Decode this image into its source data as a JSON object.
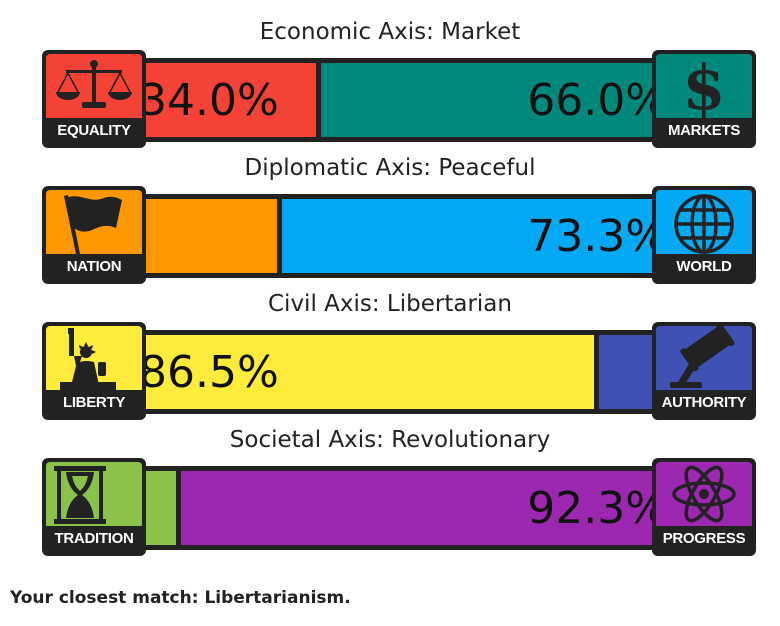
{
  "axes": [
    {
      "title": "Economic Axis: Market",
      "left": {
        "label": "EQUALITY",
        "icon": "scales-icon",
        "value": 34.0,
        "value_text": "34.0%",
        "color": "#f44336"
      },
      "right": {
        "label": "MARKETS",
        "icon": "dollar-icon",
        "value": 66.0,
        "value_text": "66.0%",
        "color": "#00897b"
      }
    },
    {
      "title": "Diplomatic Axis: Peaceful",
      "left": {
        "label": "NATION",
        "icon": "flag-icon",
        "value": 26.7,
        "value_text": "",
        "color": "#ff9800"
      },
      "right": {
        "label": "WORLD",
        "icon": "globe-icon",
        "value": 73.3,
        "value_text": "73.3%",
        "color": "#03a9f4"
      }
    },
    {
      "title": "Civil Axis: Libertarian",
      "left": {
        "label": "LIBERTY",
        "icon": "statue-of-liberty-icon",
        "value": 86.5,
        "value_text": "86.5%",
        "color": "#ffeb3b"
      },
      "right": {
        "label": "AUTHORITY",
        "icon": "gavel-icon",
        "value": 13.5,
        "value_text": "",
        "color": "#3f51b5"
      }
    },
    {
      "title": "Societal Axis: Revolutionary",
      "left": {
        "label": "TRADITION",
        "icon": "hourglass-icon",
        "value": 7.7,
        "value_text": "",
        "color": "#8bc34a"
      },
      "right": {
        "label": "PROGRESS",
        "icon": "atom-icon",
        "value": 92.3,
        "value_text": "92.3%",
        "color": "#9c27b0"
      }
    }
  ],
  "result": {
    "prefix": "Your closest match: ",
    "ideology": "Libertarianism."
  }
}
